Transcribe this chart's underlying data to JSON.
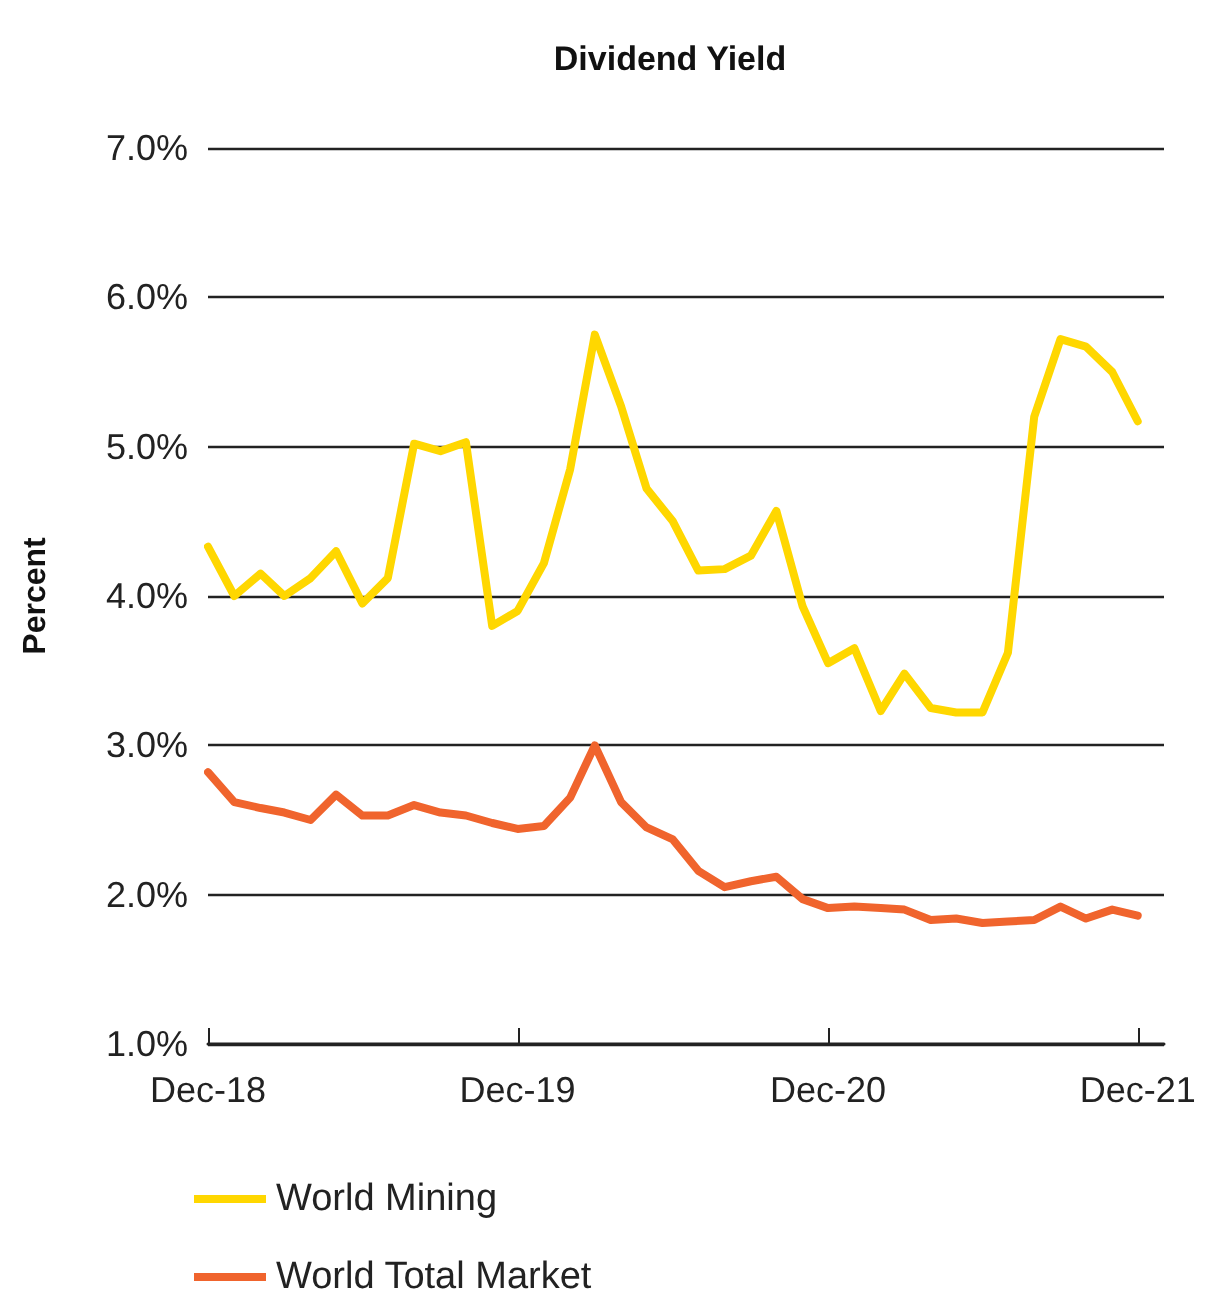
{
  "chart_data": {
    "type": "line",
    "title": "Dividend Yield",
    "ylabel": "Percent",
    "x": [
      "2018-12",
      "2019-01",
      "2019-02",
      "2019-03",
      "2019-04",
      "2019-05",
      "2019-06",
      "2019-07",
      "2019-08",
      "2019-09",
      "2019-10",
      "2019-11",
      "2019-12",
      "2020-01",
      "2020-02",
      "2020-03",
      "2020-04",
      "2020-05",
      "2020-06",
      "2020-07",
      "2020-08",
      "2020-09",
      "2020-10",
      "2020-11",
      "2020-12",
      "2021-01",
      "2021-02",
      "2021-03",
      "2021-04",
      "2021-05",
      "2021-06",
      "2021-07",
      "2021-08",
      "2021-09",
      "2021-10",
      "2021-11",
      "2021-12"
    ],
    "series": [
      {
        "name": "World Mining",
        "color": "#ffd700",
        "values": [
          4.33,
          4.0,
          4.15,
          4.0,
          4.12,
          4.3,
          3.95,
          4.12,
          5.02,
          4.97,
          5.03,
          3.8,
          3.9,
          4.22,
          4.85,
          5.75,
          5.27,
          4.72,
          4.5,
          4.17,
          4.18,
          4.27,
          4.57,
          3.93,
          3.55,
          3.65,
          3.23,
          3.48,
          3.25,
          3.22,
          3.22,
          3.62,
          5.2,
          5.72,
          5.67,
          5.5,
          5.17
        ]
      },
      {
        "name": "World Total Market",
        "color": "#f0642d",
        "values": [
          2.82,
          2.62,
          2.58,
          2.55,
          2.5,
          2.67,
          2.53,
          2.53,
          2.6,
          2.55,
          2.53,
          2.48,
          2.44,
          2.46,
          2.65,
          3.0,
          2.62,
          2.45,
          2.37,
          2.16,
          2.05,
          2.09,
          2.12,
          1.97,
          1.91,
          1.92,
          1.91,
          1.9,
          1.83,
          1.84,
          1.81,
          1.82,
          1.83,
          1.92,
          1.84,
          1.9,
          1.86
        ]
      }
    ],
    "xlim": [
      "2018-12",
      "2022-01"
    ],
    "xticks": [
      {
        "value": "2018-12",
        "label": "Dec-18"
      },
      {
        "value": "2019-12",
        "label": "Dec-19"
      },
      {
        "value": "2020-12",
        "label": "Dec-20"
      },
      {
        "value": "2021-12",
        "label": "Dec-21"
      }
    ],
    "ylim": [
      1,
      7
    ],
    "yticks": [
      {
        "value": 1,
        "label": "1.0%"
      },
      {
        "value": 2,
        "label": "2.0%"
      },
      {
        "value": 3,
        "label": "3.0%"
      },
      {
        "value": 4,
        "label": "4.0%"
      },
      {
        "value": 5,
        "label": "5.0%"
      },
      {
        "value": 6,
        "label": "6.0%"
      },
      {
        "value": 7,
        "label": "7.0%"
      }
    ],
    "grid": "y",
    "legend": "bottom",
    "marker": "none",
    "line_style": "solid"
  }
}
